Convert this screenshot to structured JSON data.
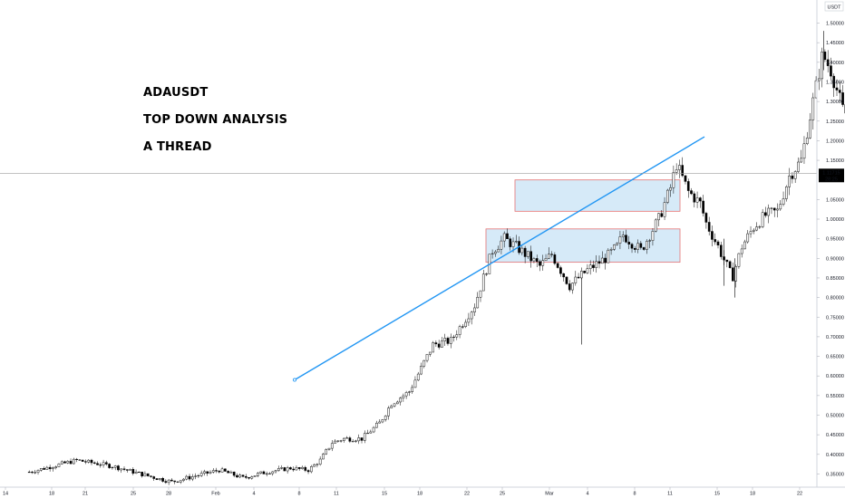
{
  "chart_data": {
    "type": "candlestick",
    "symbol_label": "USDT",
    "annotations": [
      "ADAUSDT",
      "TOP DOWN ANALYSIS",
      "A THREAD"
    ],
    "price_tag": {
      "price": "1.11715",
      "countdown": "28:25",
      "value": 1.11715
    },
    "y_ticks": [
      "1.50000",
      "1.45000",
      "1.40000",
      "1.35000",
      "1.30000",
      "1.25000",
      "1.20000",
      "1.15000",
      "1.05000",
      "1.00000",
      "0.95000",
      "0.90000",
      "0.85000",
      "0.80000",
      "0.75000",
      "0.70000",
      "0.65000",
      "0.60000",
      "0.55000",
      "0.50000",
      "0.45000",
      "0.40000",
      "0.35000"
    ],
    "x_ticks": [
      "14",
      "18",
      "21",
      "25",
      "28",
      "Feb",
      "4",
      "8",
      "11",
      "15",
      "18",
      "22",
      "25",
      "Mar",
      "4",
      "8",
      "11",
      "15",
      "18",
      "22"
    ],
    "ylim": [
      0.33,
      1.535
    ],
    "zones": [
      {
        "name": "upper-demand-zone",
        "top": 1.1,
        "bottom": 1.02
      },
      {
        "name": "lower-demand-zone",
        "top": 0.975,
        "bottom": 0.89
      }
    ],
    "trendline": {
      "from": {
        "x": "Feb 8",
        "y": 0.59
      },
      "to": {
        "x": "Mar 10",
        "y": 1.21
      }
    },
    "colors": {
      "up": "#ffffff",
      "down": "#000000",
      "wick": "#000000",
      "trendline": "#2196f3",
      "zone_fill": "#d6eaf8",
      "zone_border": "#e57373",
      "price_line": "#9e9e9e",
      "tag_bg": "#000000",
      "tag_text": "#ffffff"
    }
  }
}
